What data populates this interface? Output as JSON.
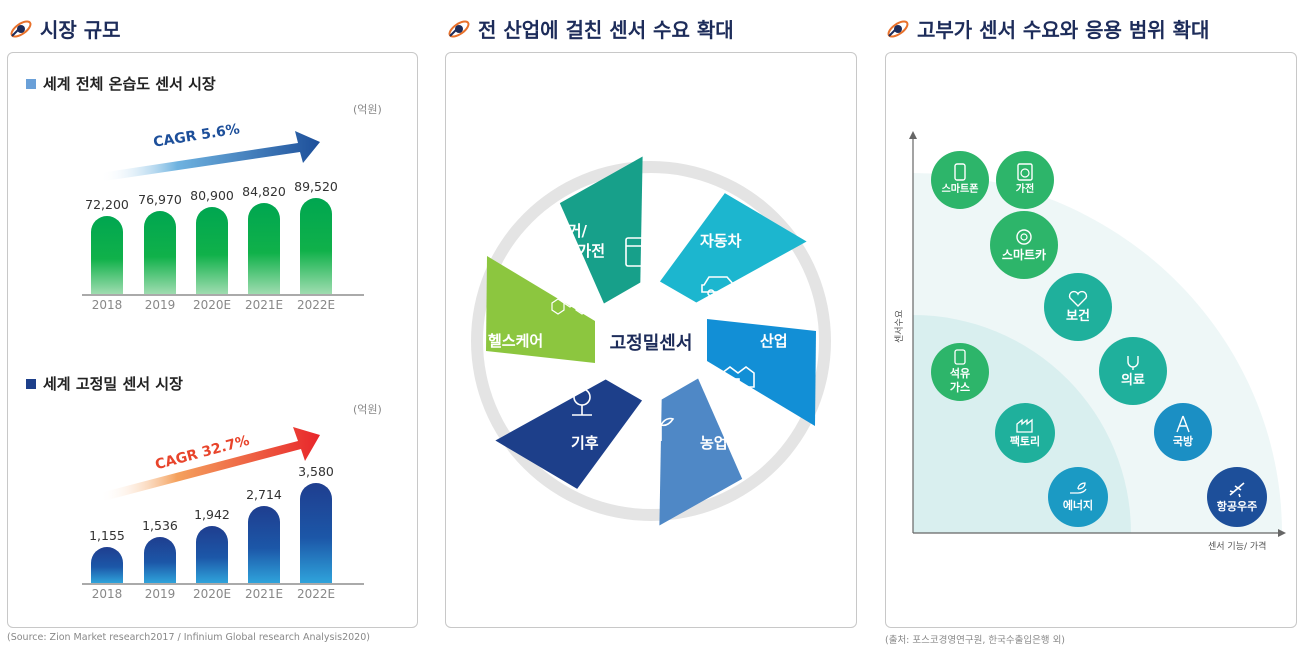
{
  "sections": {
    "market_size": "시장 규모",
    "demand": "전 산업에 걸친 센서 수요 확대",
    "high_value": "고부가 센서 수요와 응용 범위 확대"
  },
  "chart1": {
    "title": "세계 전체 온습도 센서 시장",
    "unit": "(억원)",
    "cagr": "CAGR 5.6%"
  },
  "chart2": {
    "title": "세계 고정밀 센서 시장",
    "unit": "(억원)",
    "cagr": "CAGR 32.7%"
  },
  "chart_data": [
    {
      "type": "bar",
      "title": "세계 전체 온습도 센서 시장",
      "categories": [
        "2018",
        "2019",
        "2020E",
        "2021E",
        "2022E"
      ],
      "values": [
        72200,
        76970,
        80900,
        84820,
        89520
      ],
      "value_labels": [
        "72,200",
        "76,970",
        "80,900",
        "84,820",
        "89,520"
      ],
      "ylabel": "(억원)",
      "annotation": "CAGR 5.6%",
      "color": "#00a650"
    },
    {
      "type": "bar",
      "title": "세계 고정밀 센서 시장",
      "categories": [
        "2018",
        "2019",
        "2020E",
        "2021E",
        "2022E"
      ],
      "values": [
        1155,
        1536,
        1942,
        2714,
        3580
      ],
      "value_labels": [
        "1,155",
        "1,536",
        "1,942",
        "2,714",
        "3,580"
      ],
      "ylabel": "(억원)",
      "annotation": "CAGR 32.7%",
      "color": "#1f3e8f"
    }
  ],
  "wheel": {
    "center": "고정밀센서",
    "segments": {
      "home": "주거/\n스마트가전",
      "auto": "자동차",
      "industry": "산업",
      "agriculture": "농업",
      "climate": "기후",
      "health": "헬스케어"
    },
    "colors": {
      "home": "#17a08a",
      "auto": "#1cb6cf",
      "industry": "#128fd6",
      "agriculture": "#4f88c6",
      "climate": "#1d3f8a",
      "health": "#8cc63f"
    }
  },
  "scatter": {
    "y_label": "센서수요",
    "x_label": "센서 기능/ 가격",
    "bubbles": {
      "smartphone": "스마트폰",
      "appliance": "가전",
      "smartcar": "스마트카",
      "health": "보건",
      "oilgas": "석유\n가스",
      "medical": "의료",
      "factory": "팩토리",
      "defense": "국방",
      "energy": "에너지",
      "aerospace": "항공우주"
    }
  },
  "footers": {
    "left": "(Source: Zion Market research2017 / Infinium Global research Analysis2020)",
    "right": "(출처: 포스코경영연구원, 한국수출입은행 외)"
  }
}
